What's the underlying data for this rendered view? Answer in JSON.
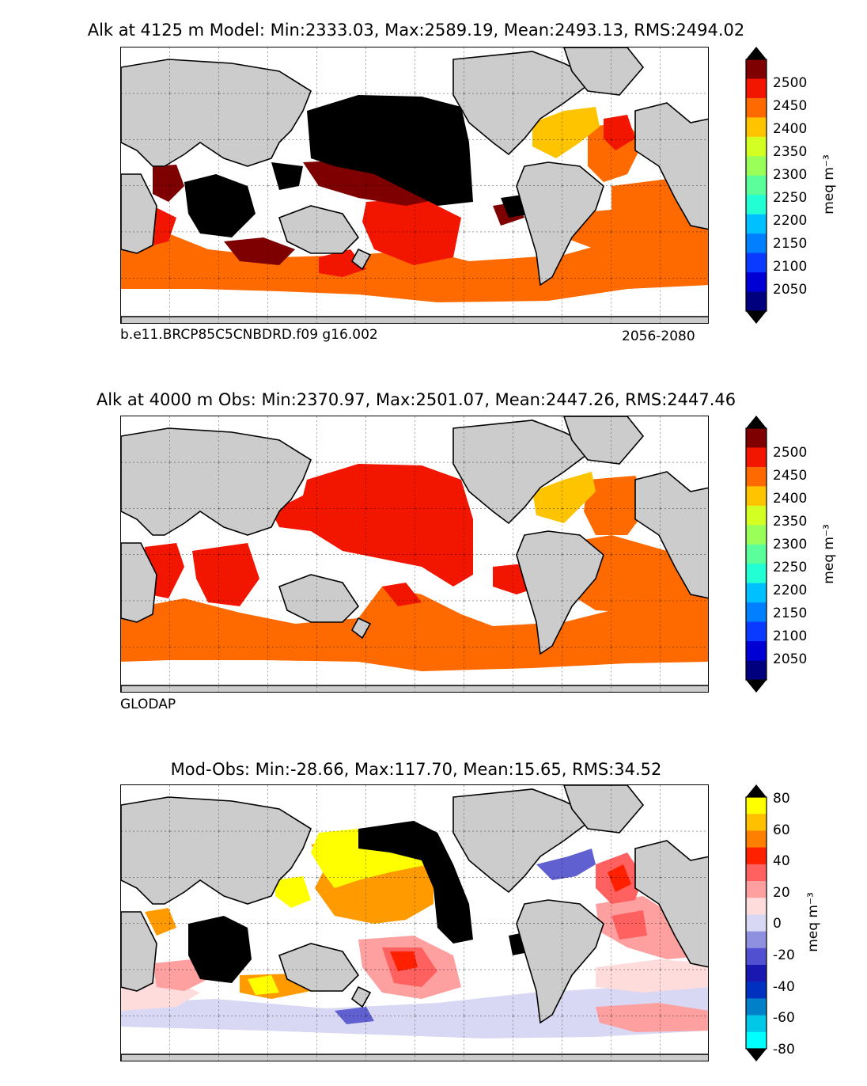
{
  "panels": [
    {
      "title": "Alk at 4125 m Model: Min:2333.03, Max:2589.19, Mean:2493.13, RMS:2494.02",
      "left_note": "b.e11.BRCP85C5CNBDRD.f09 g16.002",
      "right_note": "2056-2080",
      "colorbar": {
        "ticks": [
          "2050",
          "2100",
          "2150",
          "2200",
          "2250",
          "2300",
          "2350",
          "2400",
          "2450",
          "2500"
        ],
        "unit": "meq m⁻³",
        "colors": [
          "#00007f",
          "#0000d5",
          "#0a3aff",
          "#0080ff",
          "#00c0ff",
          "#22ffd4",
          "#5aff9b",
          "#9bff5a",
          "#d4ff22",
          "#ffc400",
          "#ff6a00",
          "#f21500",
          "#7f0000"
        ]
      }
    },
    {
      "title": "Alk at 4000 m Obs: Min:2370.97, Max:2501.07, Mean:2447.26, RMS:2447.46",
      "left_note": "GLODAP",
      "right_note": "",
      "colorbar": {
        "ticks": [
          "2050",
          "2100",
          "2150",
          "2200",
          "2250",
          "2300",
          "2350",
          "2400",
          "2450",
          "2500"
        ],
        "unit": "meq m⁻³",
        "colors": [
          "#00007f",
          "#0000d5",
          "#0a3aff",
          "#0080ff",
          "#00c0ff",
          "#22ffd4",
          "#5aff9b",
          "#9bff5a",
          "#d4ff22",
          "#ffc400",
          "#ff6a00",
          "#f21500",
          "#7f0000"
        ]
      }
    },
    {
      "title": "Mod-Obs: Min:-28.66, Max:117.70, Mean:15.65, RMS:34.52",
      "left_note": "",
      "right_note": "",
      "colorbar": {
        "ticks": [
          "-80",
          "-60",
          "-40",
          "-20",
          "0",
          "20",
          "40",
          "60",
          "80"
        ],
        "unit": "meq m⁻³",
        "colors": [
          "#00ffff",
          "#00c8e6",
          "#0080c8",
          "#0030c0",
          "#1818b0",
          "#5050d0",
          "#9090e0",
          "#d8d8f4",
          "#ffdcdc",
          "#ffa0a0",
          "#ff6060",
          "#ff2000",
          "#ff8000",
          "#ffc000",
          "#ffff00"
        ]
      }
    }
  ],
  "colors": {
    "land": "#cccccc",
    "coast": "#000000",
    "black_region": "#000000",
    "dark_red": "#7f0000",
    "red": "#f21500",
    "orange": "#ff6a00",
    "gold": "#ffc400",
    "yellow": "#ffff00",
    "amber": "#ff9a00",
    "pink": "#ffa0a0",
    "salmon": "#ff6060",
    "light_pink": "#ffdcdc",
    "lavender": "#d8d8f4",
    "blue": "#6060d0"
  }
}
